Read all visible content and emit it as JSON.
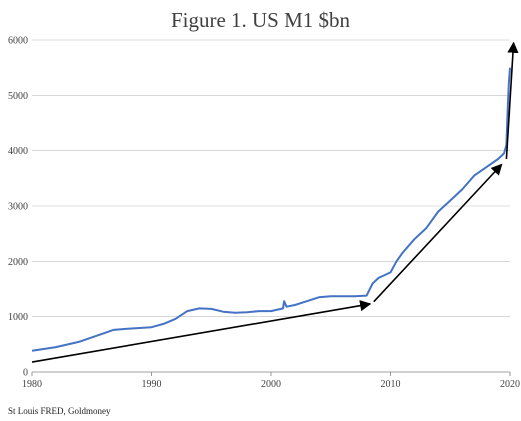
{
  "chart_data": {
    "type": "line",
    "title": "Figure 1. US M1 $bn",
    "source": "St Louis FRED, Goldmoney",
    "xlabel": "",
    "ylabel": "",
    "xlim": [
      1980,
      2020
    ],
    "ylim": [
      0,
      6000
    ],
    "x_ticks": [
      1980,
      1990,
      2000,
      2010,
      2020
    ],
    "y_ticks": [
      0,
      1000,
      2000,
      3000,
      4000,
      5000,
      6000
    ],
    "grid": "horizontal",
    "series": [
      {
        "color": "#4472c4",
        "x": [
          1980,
          1982,
          1984,
          1986,
          1986.8,
          1988,
          1990,
          1991,
          1992,
          1993,
          1994,
          1995,
          1996,
          1997,
          1998,
          1999,
          2000,
          2001,
          2001.1,
          2001.3,
          2002,
          2003,
          2004,
          2005,
          2006,
          2007,
          2008,
          2008.5,
          2009,
          2010,
          2010.5,
          2011,
          2012,
          2013,
          2014,
          2015,
          2016,
          2017,
          2018,
          2019,
          2019.5,
          2019.7,
          2019.8,
          2019.9,
          2020
        ],
        "y": [
          385,
          450,
          550,
          700,
          760,
          780,
          810,
          870,
          960,
          1100,
          1150,
          1140,
          1090,
          1070,
          1080,
          1100,
          1100,
          1150,
          1280,
          1180,
          1210,
          1280,
          1350,
          1370,
          1370,
          1370,
          1380,
          1600,
          1700,
          1800,
          2000,
          2150,
          2400,
          2600,
          2900,
          3100,
          3300,
          3550,
          3700,
          3850,
          3950,
          4100,
          4700,
          5200,
          5500
        ]
      }
    ],
    "annotations": [
      {
        "type": "arrow",
        "from": [
          1980,
          180
        ],
        "to": [
          2008.3,
          1230
        ]
      },
      {
        "type": "arrow",
        "from": [
          2008.6,
          1270
        ],
        "to": [
          2019.3,
          3750
        ]
      },
      {
        "type": "arrow",
        "from": [
          2019.7,
          3850
        ],
        "to": [
          2020.3,
          5950
        ]
      }
    ]
  }
}
